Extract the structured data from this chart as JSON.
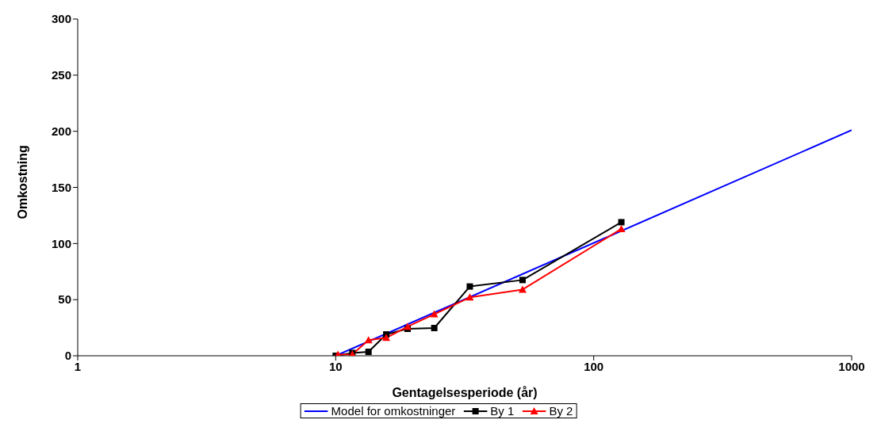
{
  "chart_data": {
    "type": "line",
    "xlabel": "Gentagelsesperiode (år)",
    "ylabel": "Omkostning",
    "log": "x",
    "xlim": [
      1,
      1000
    ],
    "xticks": [
      1,
      10,
      100,
      1000
    ],
    "ylim": [
      0,
      300
    ],
    "yticks": [
      0,
      50,
      100,
      150,
      200,
      250,
      300
    ],
    "legend": "bottom",
    "series": [
      {
        "name": "Model for omkostninger",
        "color": "#0000ff",
        "marker": "none",
        "x": [
          10,
          1000
        ],
        "values": [
          0,
          201
        ]
      },
      {
        "name": "By 1",
        "color": "#000000",
        "marker": "square",
        "x": [
          10,
          11.6,
          13.4,
          15.7,
          19,
          24.1,
          33.1,
          53,
          128
        ],
        "values": [
          0,
          2.5,
          3.5,
          19,
          24,
          24.7,
          61.7,
          67.5,
          119
        ]
      },
      {
        "name": "By 2",
        "color": "#ff0000",
        "marker": "triangle",
        "x": [
          10.2,
          11.6,
          13.4,
          15.7,
          19,
          24.1,
          33.1,
          53,
          128
        ],
        "values": [
          1,
          1.3,
          14,
          16,
          26,
          37,
          52,
          59,
          113
        ]
      }
    ]
  }
}
